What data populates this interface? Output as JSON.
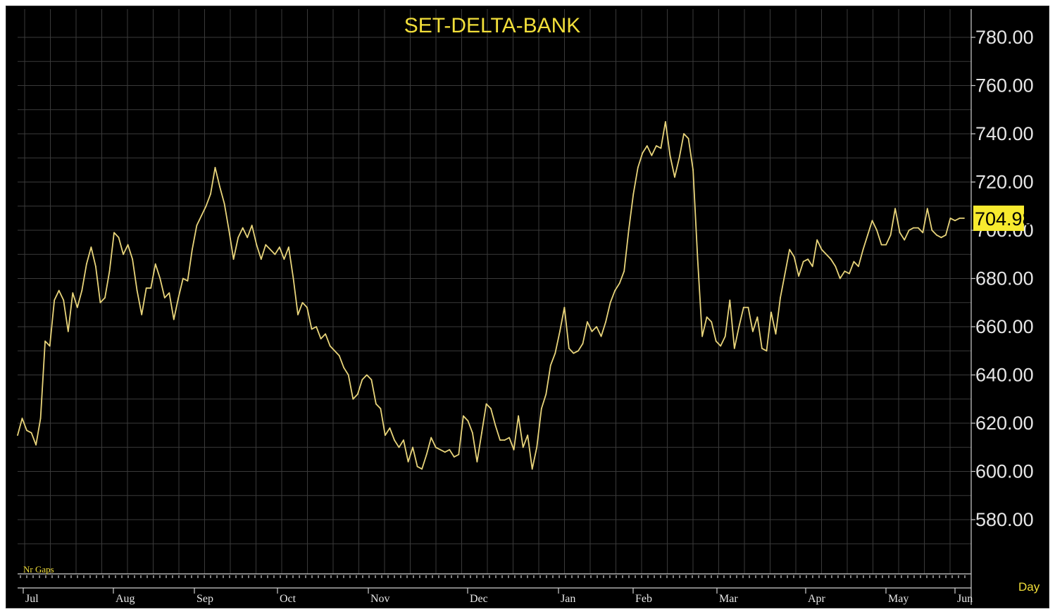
{
  "chart_data": {
    "type": "line",
    "title": "SET-DELTA-BANK",
    "xlabel": "",
    "ylabel": "",
    "ylim": [
      555,
      786
    ],
    "y_ticks": [
      "780.00",
      "760.00",
      "740.00",
      "720.00",
      "700.00",
      "680.00",
      "660.00",
      "640.00",
      "620.00",
      "600.00",
      "580.00"
    ],
    "y_tick_values": [
      780,
      760,
      740,
      720,
      700,
      680,
      660,
      640,
      620,
      600,
      580
    ],
    "months": [
      "Jul",
      "Aug",
      "Sep",
      "Oct",
      "Nov",
      "Dec",
      "Jan",
      "Feb",
      "Mar",
      "Apr",
      "May",
      "Jun"
    ],
    "last_value_label": "704.98",
    "last_value": 704.98,
    "frequency_label": "Day",
    "corner_label": "Nr Gaps",
    "grid": true,
    "line_color": "#e8d47a",
    "highlight_color": "#f7ea2e",
    "series": [
      {
        "values": [
          615,
          622,
          617,
          616,
          611,
          622,
          654,
          652,
          671,
          675,
          671,
          658,
          674,
          668,
          675,
          686,
          693,
          685,
          670,
          672,
          683,
          699,
          697,
          690,
          694,
          688,
          675,
          665,
          676,
          676,
          686,
          680,
          672,
          674,
          663,
          672,
          680,
          679,
          692,
          702,
          706,
          710,
          715,
          726,
          718,
          711,
          700,
          688,
          697,
          701,
          697,
          702,
          694,
          688,
          694,
          692,
          690,
          693,
          688,
          693,
          680,
          665,
          670,
          668,
          659,
          660,
          655,
          657,
          652,
          650,
          648,
          643,
          640,
          630,
          632,
          638,
          640,
          638,
          628,
          626,
          615,
          618,
          613,
          610,
          613,
          604,
          610,
          602,
          601,
          607,
          614,
          610,
          609,
          608,
          609,
          606,
          607,
          623,
          621,
          616,
          604,
          616,
          628,
          626,
          619,
          613,
          613,
          614,
          609,
          623,
          610,
          615,
          601,
          610,
          626,
          632,
          644,
          649,
          658,
          668,
          651,
          649,
          650,
          653,
          662,
          658,
          660,
          656,
          662,
          670,
          675,
          678,
          683,
          700,
          715,
          726,
          732,
          735,
          731,
          735,
          734,
          745,
          731,
          722,
          730,
          740,
          738,
          725,
          688,
          656,
          664,
          662,
          654,
          652,
          656,
          671,
          651,
          660,
          668,
          668,
          658,
          664,
          651,
          650,
          666,
          657,
          672,
          682,
          692,
          689,
          681,
          687,
          688,
          685,
          696,
          692,
          690,
          688,
          685,
          680,
          683,
          682,
          687,
          685,
          692,
          698,
          704,
          700,
          694,
          694,
          698,
          709,
          699,
          696,
          700,
          701,
          701,
          699,
          709,
          700,
          698,
          697,
          698,
          705,
          704,
          705,
          704.98
        ]
      }
    ]
  }
}
